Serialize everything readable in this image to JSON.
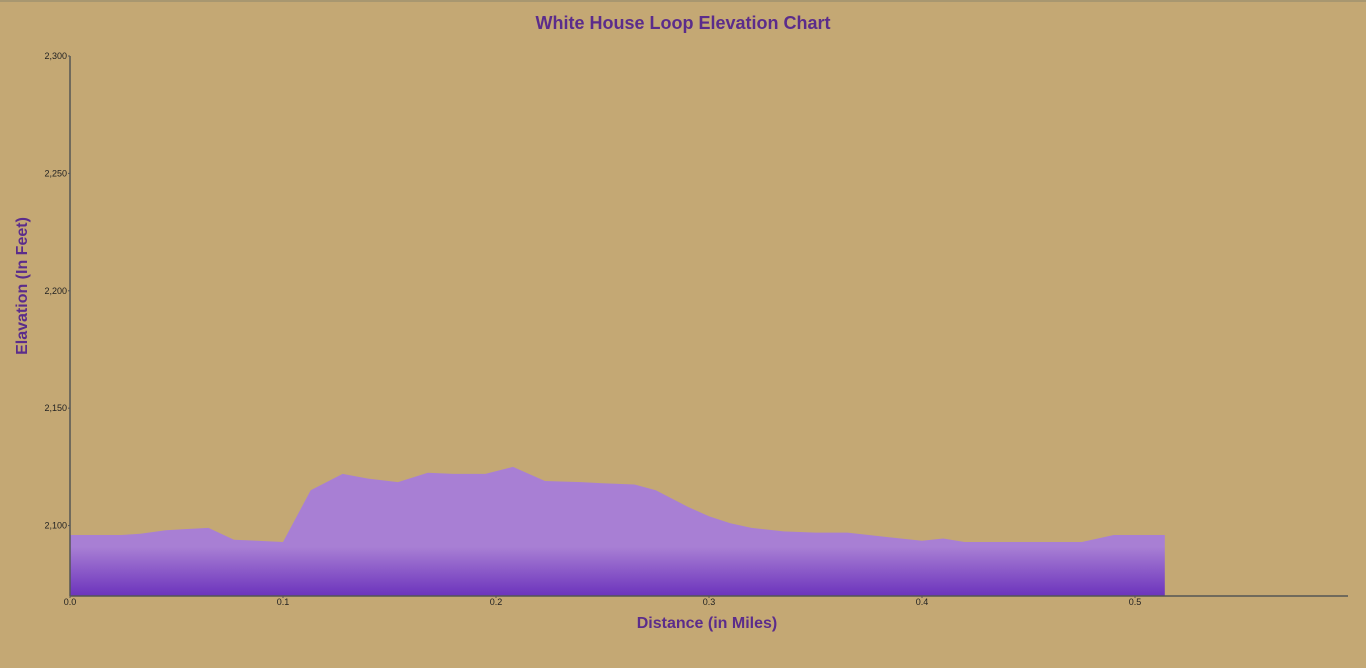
{
  "chart_data": {
    "type": "area",
    "title": "White House Loop Elevation Chart",
    "xlabel": "Distance (in Miles)",
    "ylabel": "Elavation (In Feet)",
    "xlim": [
      0.0,
      0.6
    ],
    "ylim": [
      2070,
      2300
    ],
    "x_ticks": [
      "0.0",
      "0.1",
      "0.2",
      "0.3",
      "0.4",
      "0.5"
    ],
    "y_ticks": [
      "2,100",
      "2,150",
      "2,200",
      "2,250",
      "2,300"
    ],
    "grid": false,
    "series": [
      {
        "x": [
          0.0,
          0.012,
          0.024,
          0.033,
          0.045,
          0.054,
          0.065,
          0.077,
          0.088,
          0.1,
          0.113,
          0.128,
          0.14,
          0.154,
          0.168,
          0.18,
          0.195,
          0.208,
          0.223,
          0.24,
          0.25,
          0.265,
          0.275,
          0.29,
          0.3,
          0.31,
          0.32,
          0.335,
          0.35,
          0.365,
          0.375,
          0.39,
          0.4,
          0.41,
          0.42,
          0.435,
          0.45,
          0.465,
          0.475,
          0.49,
          0.5,
          0.514
        ],
        "y": [
          2096,
          2096,
          2096,
          2096.5,
          2098,
          2098.5,
          2099,
          2094,
          2093.5,
          2093,
          2115,
          2122,
          2120,
          2118.5,
          2122.5,
          2122,
          2122,
          2125,
          2119,
          2118.5,
          2118,
          2117.5,
          2115,
          2108,
          2104,
          2101,
          2099,
          2097.5,
          2097,
          2097,
          2096,
          2094.5,
          2093.5,
          2094.5,
          2093,
          2093,
          2093,
          2093,
          2093,
          2096,
          2096,
          2096
        ]
      }
    ],
    "fill_color_top": "#a87fd4",
    "fill_color_bottom": "#7036bd",
    "text_color": "#5b2c8b",
    "background_color": "#c4a874"
  }
}
